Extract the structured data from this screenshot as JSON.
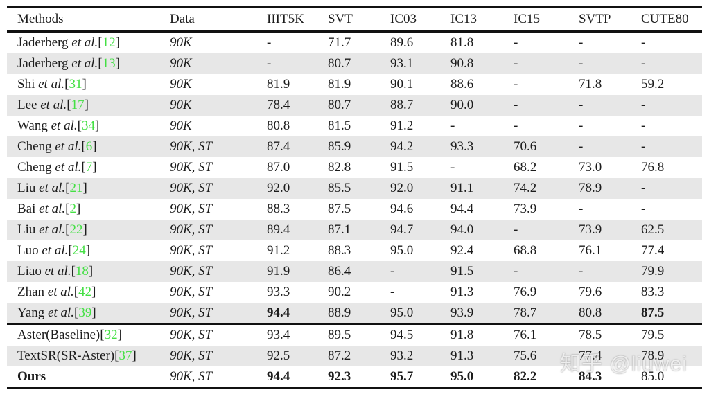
{
  "watermark": {
    "text": "知乎 @liuwei"
  },
  "colors": {
    "citation_green": "#44e044",
    "row_stripe": "#e7e7e7",
    "rule_black": "#111111"
  },
  "table": {
    "bracket_open": "[",
    "bracket_close": "]",
    "columns": [
      "Methods",
      "Data",
      "IIIT5K",
      "SVT",
      "IC03",
      "IC13",
      "IC15",
      "SVTP",
      "CUTE80"
    ],
    "rows": [
      {
        "name": "Jaderberg",
        "etal": " et al.",
        "cite": "12",
        "data": "90K",
        "values": [
          "-",
          "71.7",
          "89.6",
          "81.8",
          "-",
          "-",
          "-"
        ],
        "bold_cols": [],
        "bold_method": false,
        "group_start": false
      },
      {
        "name": "Jaderberg",
        "etal": " et al.",
        "cite": "13",
        "data": "90K",
        "values": [
          "-",
          "80.7",
          "93.1",
          "90.8",
          "-",
          "-",
          "-"
        ],
        "bold_cols": [],
        "bold_method": false,
        "group_start": false
      },
      {
        "name": "Shi",
        "etal": " et al.",
        "cite": "31",
        "data": "90K",
        "values": [
          "81.9",
          "81.9",
          "90.1",
          "88.6",
          "-",
          "71.8",
          "59.2"
        ],
        "bold_cols": [],
        "bold_method": false,
        "group_start": false
      },
      {
        "name": "Lee",
        "etal": " et al.",
        "cite": "17",
        "data": "90K",
        "values": [
          "78.4",
          "80.7",
          "88.7",
          "90.0",
          "-",
          "-",
          "-"
        ],
        "bold_cols": [],
        "bold_method": false,
        "group_start": false
      },
      {
        "name": "Wang",
        "etal": " et al.",
        "cite": "34",
        "data": "90K",
        "values": [
          "80.8",
          "81.5",
          "91.2",
          "-",
          "-",
          "-",
          "-"
        ],
        "bold_cols": [],
        "bold_method": false,
        "group_start": false
      },
      {
        "name": "Cheng",
        "etal": " et al.",
        "cite": "6",
        "data": "90K, ST",
        "values": [
          "87.4",
          "85.9",
          "94.2",
          "93.3",
          "70.6",
          "-",
          "-"
        ],
        "bold_cols": [],
        "bold_method": false,
        "group_start": false
      },
      {
        "name": "Cheng",
        "etal": " et al.",
        "cite": "7",
        "data": "90K, ST",
        "values": [
          "87.0",
          "82.8",
          "91.5",
          "-",
          "68.2",
          "73.0",
          "76.8"
        ],
        "bold_cols": [],
        "bold_method": false,
        "group_start": false
      },
      {
        "name": "Liu",
        "etal": " et al.",
        "cite": "21",
        "data": "90K, ST",
        "values": [
          "92.0",
          "85.5",
          "92.0",
          "91.1",
          "74.2",
          "78.9",
          "-"
        ],
        "bold_cols": [],
        "bold_method": false,
        "group_start": false
      },
      {
        "name": "Bai",
        "etal": " et al.",
        "cite": "2",
        "data": "90K, ST",
        "values": [
          "88.3",
          "87.5",
          "94.6",
          "94.4",
          "73.9",
          "-",
          "-"
        ],
        "bold_cols": [],
        "bold_method": false,
        "group_start": false
      },
      {
        "name": "Liu",
        "etal": " et al.",
        "cite": "22",
        "data": "90K, ST",
        "values": [
          "89.4",
          "87.1",
          "94.7",
          "94.0",
          "-",
          "73.9",
          "62.5"
        ],
        "bold_cols": [],
        "bold_method": false,
        "group_start": false
      },
      {
        "name": "Luo",
        "etal": " et al.",
        "cite": "24",
        "data": "90K, ST",
        "values": [
          "91.2",
          "88.3",
          "95.0",
          "92.4",
          "68.8",
          "76.1",
          "77.4"
        ],
        "bold_cols": [],
        "bold_method": false,
        "group_start": false
      },
      {
        "name": "Liao",
        "etal": " et al.",
        "cite": "18",
        "data": "90K, ST",
        "values": [
          "91.9",
          "86.4",
          "-",
          "91.5",
          "-",
          "-",
          "79.9"
        ],
        "bold_cols": [],
        "bold_method": false,
        "group_start": false
      },
      {
        "name": "Zhan",
        "etal": " et al.",
        "cite": "42",
        "data": "90K, ST",
        "values": [
          "93.3",
          "90.2",
          "-",
          "91.3",
          "76.9",
          "79.6",
          "83.3"
        ],
        "bold_cols": [],
        "bold_method": false,
        "group_start": false
      },
      {
        "name": "Yang",
        "etal": " et al.",
        "cite": "39",
        "data": "90K, ST",
        "values": [
          "94.4",
          "88.9",
          "95.0",
          "93.9",
          "78.7",
          "80.8",
          "87.5"
        ],
        "bold_cols": [
          0,
          6
        ],
        "bold_method": false,
        "group_start": false
      },
      {
        "name": "Aster(Baseline)",
        "etal": "",
        "cite": "32",
        "data": "90K, ST",
        "values": [
          "93.4",
          "89.5",
          "94.5",
          "91.8",
          "76.1",
          "78.5",
          "79.5"
        ],
        "bold_cols": [],
        "bold_method": false,
        "group_start": true
      },
      {
        "name": "TextSR(SR-Aster)",
        "etal": "",
        "cite": "37",
        "data": "90K, ST",
        "values": [
          "92.5",
          "87.2",
          "93.2",
          "91.3",
          "75.6",
          "77.4",
          "78.9"
        ],
        "bold_cols": [],
        "bold_method": false,
        "group_start": false
      },
      {
        "name": "Ours",
        "etal": "",
        "cite": "",
        "data": "90K, ST",
        "values": [
          "94.4",
          "92.3",
          "95.7",
          "95.0",
          "82.2",
          "84.3",
          "85.0"
        ],
        "bold_cols": [
          0,
          1,
          2,
          3,
          4,
          5
        ],
        "bold_method": true,
        "group_start": false
      }
    ]
  }
}
